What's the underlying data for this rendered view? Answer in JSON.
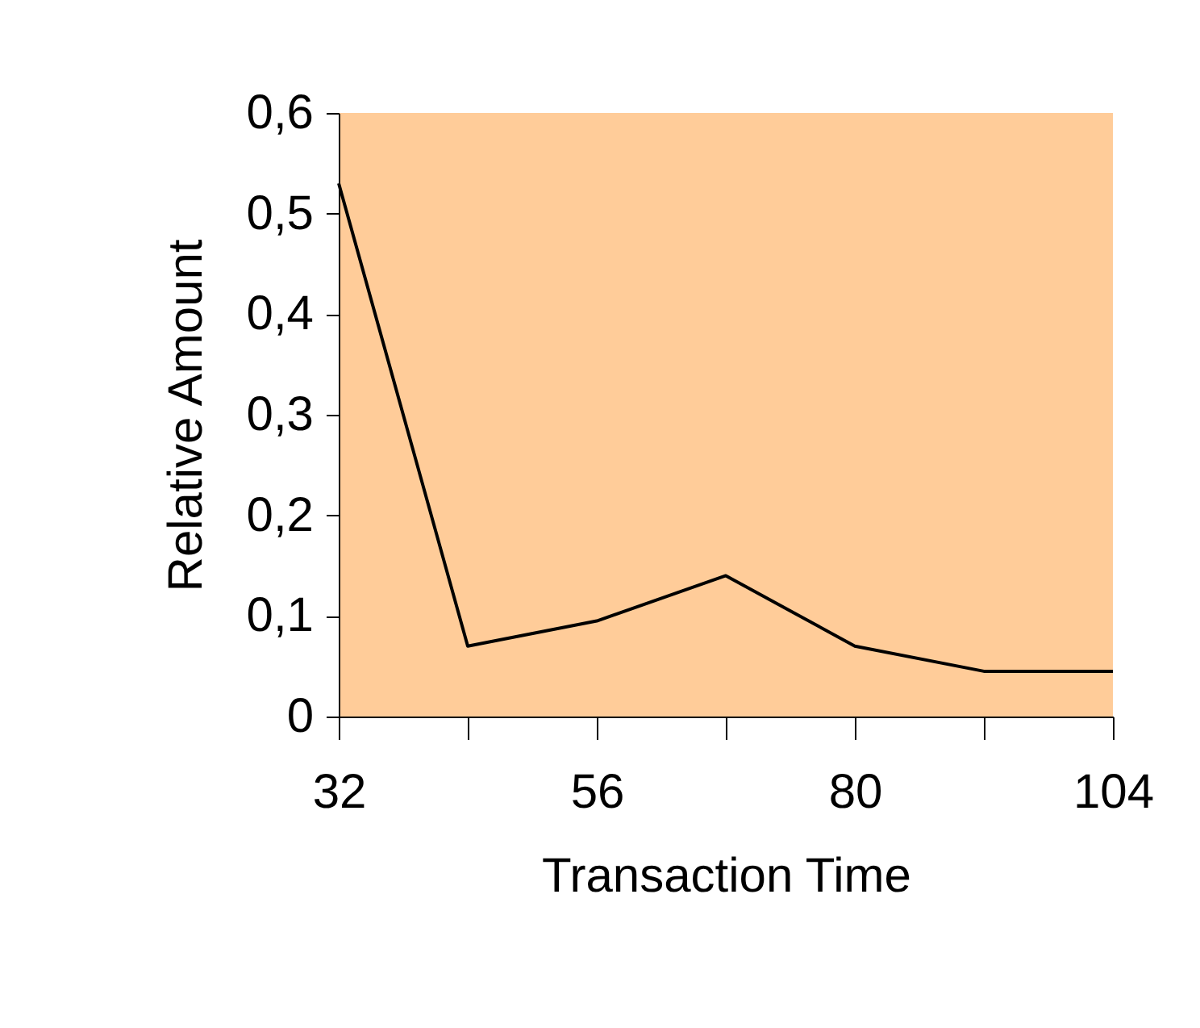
{
  "chart_data": {
    "type": "line",
    "xlabel": "Transaction Time",
    "ylabel": "Relative Amount",
    "x": [
      32,
      44,
      56,
      68,
      80,
      92,
      104
    ],
    "series": [
      {
        "color": "#000000",
        "values": [
          0.53,
          0.07,
          0.095,
          0.14,
          0.07,
          0.045,
          0.045
        ]
      }
    ],
    "xlim": [
      32,
      104
    ],
    "ylim": [
      0,
      0.6
    ],
    "xticks": [
      32,
      {
        "value": 44,
        "label": null
      },
      56,
      {
        "value": 68,
        "label": null
      },
      80,
      {
        "value": 92,
        "label": null
      },
      104
    ],
    "yticks": [
      0,
      {
        "value": 0.1,
        "label": "0,1"
      },
      {
        "value": 0.2,
        "label": "0,2"
      },
      {
        "value": 0.3,
        "label": "0,3"
      },
      {
        "value": 0.4,
        "label": "0,4"
      },
      {
        "value": 0.5,
        "label": "0,5"
      },
      {
        "value": 0.6,
        "label": "0,6"
      }
    ],
    "grid": false,
    "marker": "none",
    "line_style": "solid"
  }
}
